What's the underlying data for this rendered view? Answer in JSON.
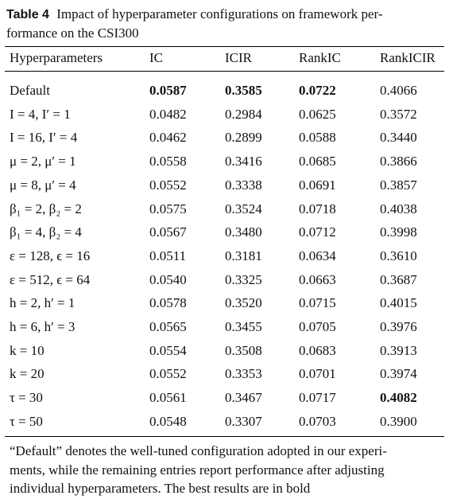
{
  "caption": {
    "label": "Table 4",
    "lines": [
      "Impact of hyperparameter configurations on framework per-",
      "formance on the CSI300"
    ]
  },
  "table": {
    "header": [
      "Hyperparameters",
      "IC",
      "ICIR",
      "RankIC",
      "RankICIR"
    ],
    "rows": [
      [
        "Default",
        "0.0587",
        "0.3585",
        "0.0722",
        "0.4066"
      ],
      [
        "I = 4, I′ = 1",
        "0.0482",
        "0.2984",
        "0.0625",
        "0.3572"
      ],
      [
        "I = 16, I′ = 4",
        "0.0462",
        "0.2899",
        "0.0588",
        "0.3440"
      ],
      [
        "μ = 2, μ′ = 1",
        "0.0558",
        "0.3416",
        "0.0685",
        "0.3866"
      ],
      [
        "μ = 8, μ′ = 4",
        "0.0552",
        "0.3338",
        "0.0691",
        "0.3857"
      ],
      [
        "β₁ = 2, β₂ = 2",
        "0.0575",
        "0.3524",
        "0.0718",
        "0.4038"
      ],
      [
        "β₁ = 4, β₂ = 4",
        "0.0567",
        "0.3480",
        "0.0712",
        "0.3998"
      ],
      [
        "ε = 128, ϵ = 16",
        "0.0511",
        "0.3181",
        "0.0634",
        "0.3610"
      ],
      [
        "ε = 512, ϵ = 64",
        "0.0540",
        "0.3325",
        "0.0663",
        "0.3687"
      ],
      [
        "h = 2, h′ = 1",
        "0.0578",
        "0.3520",
        "0.0715",
        "0.4015"
      ],
      [
        "h = 6, h′ = 3",
        "0.0565",
        "0.3455",
        "0.0705",
        "0.3976"
      ],
      [
        "k = 10",
        "0.0554",
        "0.3508",
        "0.0683",
        "0.3913"
      ],
      [
        "k = 20",
        "0.0552",
        "0.3353",
        "0.0701",
        "0.3974"
      ],
      [
        "τ = 30",
        "0.0561",
        "0.3467",
        "0.0717",
        "0.4082"
      ],
      [
        "τ = 50",
        "0.0548",
        "0.3307",
        "0.0703",
        "0.3900"
      ]
    ],
    "bold_cells": [
      [
        0,
        1
      ],
      [
        0,
        2
      ],
      [
        0,
        3
      ],
      [
        13,
        4
      ]
    ]
  },
  "footnote": {
    "lines": [
      "“Default” denotes the well-tuned configuration adopted in our experi-",
      "ments, while the remaining entries report performance after adjusting",
      "individual hyperparameters. The best results are in bold"
    ]
  }
}
